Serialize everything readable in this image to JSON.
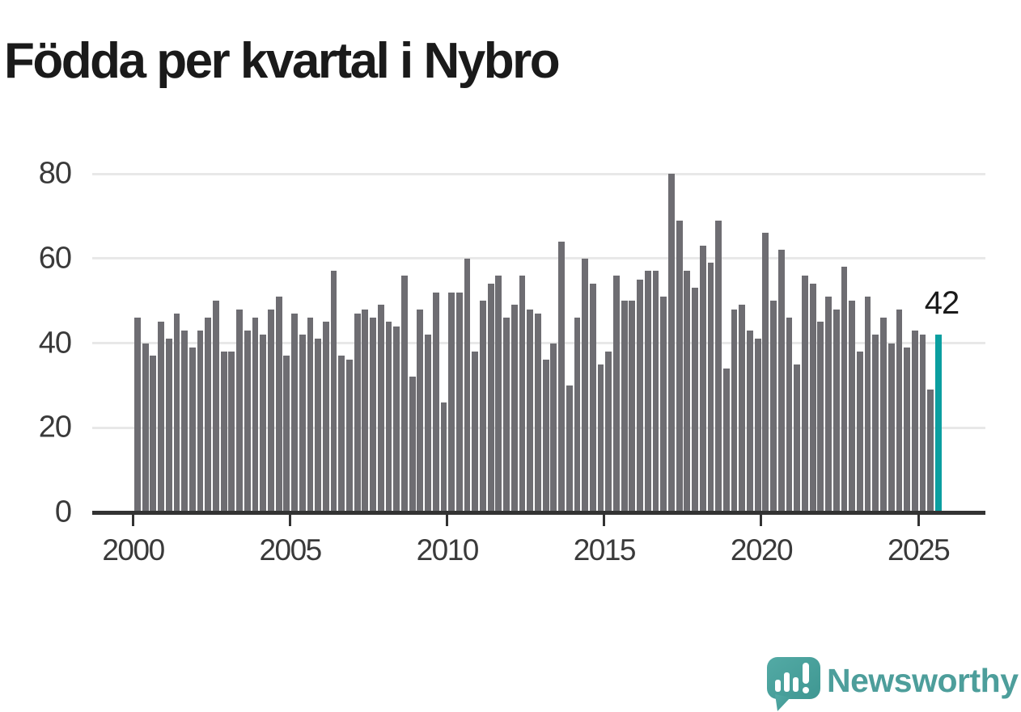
{
  "title": "Födda per kvartal i Nybro",
  "annotation": {
    "label": "42"
  },
  "branding": {
    "name": "Newsworthy",
    "icon": "newsworthy-logo-icon",
    "color": "#4d9e9b"
  },
  "colors": {
    "bar": "#6e6d72",
    "highlight": "#0b9fa0",
    "grid": "#e8e8e8",
    "axis": "#333333",
    "tick_text": "#3a3a3a",
    "title_text": "#1a1a1a"
  },
  "chart_data": {
    "type": "bar",
    "title": "Födda per kvartal i Nybro",
    "frequency": "quarterly",
    "x_start": "2000 Q1",
    "x_end": "2025 Q3",
    "x_tick_labels": [
      "2000",
      "2005",
      "2010",
      "2015",
      "2020",
      "2025"
    ],
    "y_ticks": [
      0,
      20,
      40,
      60,
      80
    ],
    "ylim": [
      0,
      84
    ],
    "grid": "horizontal",
    "legend": "none",
    "highlight_last_bar": true,
    "highlight_value": 42,
    "series": [
      {
        "name": "Födda",
        "values": [
          46,
          40,
          37,
          45,
          41,
          47,
          43,
          39,
          43,
          46,
          50,
          38,
          38,
          48,
          43,
          46,
          42,
          48,
          51,
          37,
          47,
          42,
          46,
          41,
          45,
          57,
          37,
          36,
          47,
          48,
          46,
          49,
          45,
          44,
          56,
          32,
          48,
          42,
          52,
          26,
          52,
          52,
          60,
          38,
          50,
          54,
          56,
          46,
          49,
          56,
          48,
          47,
          36,
          40,
          64,
          30,
          46,
          60,
          54,
          35,
          38,
          56,
          50,
          50,
          55,
          57,
          57,
          51,
          80,
          69,
          57,
          53,
          63,
          59,
          69,
          34,
          48,
          49,
          43,
          41,
          66,
          50,
          62,
          46,
          35,
          56,
          54,
          45,
          51,
          48,
          58,
          50,
          38,
          51,
          42,
          46,
          40,
          48,
          39,
          43,
          42,
          29,
          42
        ]
      }
    ]
  }
}
